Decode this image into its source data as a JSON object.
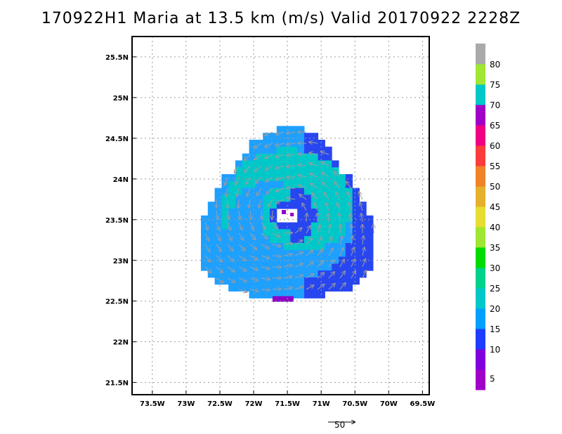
{
  "title": "170922H1 Maria at 13.5 km (m/s) Valid 20170922  2228Z",
  "map": {
    "lon_range": [
      -73.8,
      -69.4
    ],
    "lat_range": [
      21.35,
      25.75
    ],
    "x_ticks": [
      {
        "lon": -73.5,
        "label": "73.5W"
      },
      {
        "lon": -73.0,
        "label": "73W"
      },
      {
        "lon": -72.5,
        "label": "72.5W"
      },
      {
        "lon": -72.0,
        "label": "72W"
      },
      {
        "lon": -71.5,
        "label": "71.5W"
      },
      {
        "lon": -71.0,
        "label": "71W"
      },
      {
        "lon": -70.5,
        "label": "70.5W"
      },
      {
        "lon": -70.0,
        "label": "70W"
      },
      {
        "lon": -69.5,
        "label": "69.5W"
      }
    ],
    "y_ticks": [
      {
        "lat": 21.5,
        "label": "21.5N"
      },
      {
        "lat": 22.0,
        "label": "22N"
      },
      {
        "lat": 22.5,
        "label": "22.5N"
      },
      {
        "lat": 23.0,
        "label": "23N"
      },
      {
        "lat": 23.5,
        "label": "23.5N"
      },
      {
        "lat": 24.0,
        "label": "24N"
      },
      {
        "lat": 24.5,
        "label": "24.5N"
      },
      {
        "lat": 25.0,
        "label": "25N"
      },
      {
        "lat": 25.5,
        "label": "25.5N"
      }
    ],
    "grid": true,
    "storm_center": {
      "lon": -71.5,
      "lat": 23.55
    }
  },
  "colorbar": {
    "levels": [
      {
        "value": "5",
        "color": "#a000c8"
      },
      {
        "value": "10",
        "color": "#8200dc"
      },
      {
        "value": "15",
        "color": "#1e3cff"
      },
      {
        "value": "20",
        "color": "#00a0ff"
      },
      {
        "value": "25",
        "color": "#00c8c8"
      },
      {
        "value": "30",
        "color": "#00d28c"
      },
      {
        "value": "35",
        "color": "#00dc00"
      },
      {
        "value": "40",
        "color": "#a0e632"
      },
      {
        "value": "45",
        "color": "#e6dc32"
      },
      {
        "value": "50",
        "color": "#e6af2d"
      },
      {
        "value": "55",
        "color": "#f08228"
      },
      {
        "value": "60",
        "color": "#fa3c3c"
      },
      {
        "value": "65",
        "color": "#f00082"
      },
      {
        "value": "70",
        "color": "#a000c8"
      },
      {
        "value": "75",
        "color": "#00c8c8"
      },
      {
        "value": "80",
        "color": "#a0e632"
      },
      {
        "value": "",
        "color": "#aaaaaa"
      }
    ]
  },
  "wind_colors": {
    "purple": "#8c00c8",
    "blue": "#2846f0",
    "lightblue": "#1ea0ff",
    "cyan": "#00c8c8",
    "teal": "#1ec8b4"
  },
  "vector_scale": {
    "label": "50",
    "speed": 50
  }
}
